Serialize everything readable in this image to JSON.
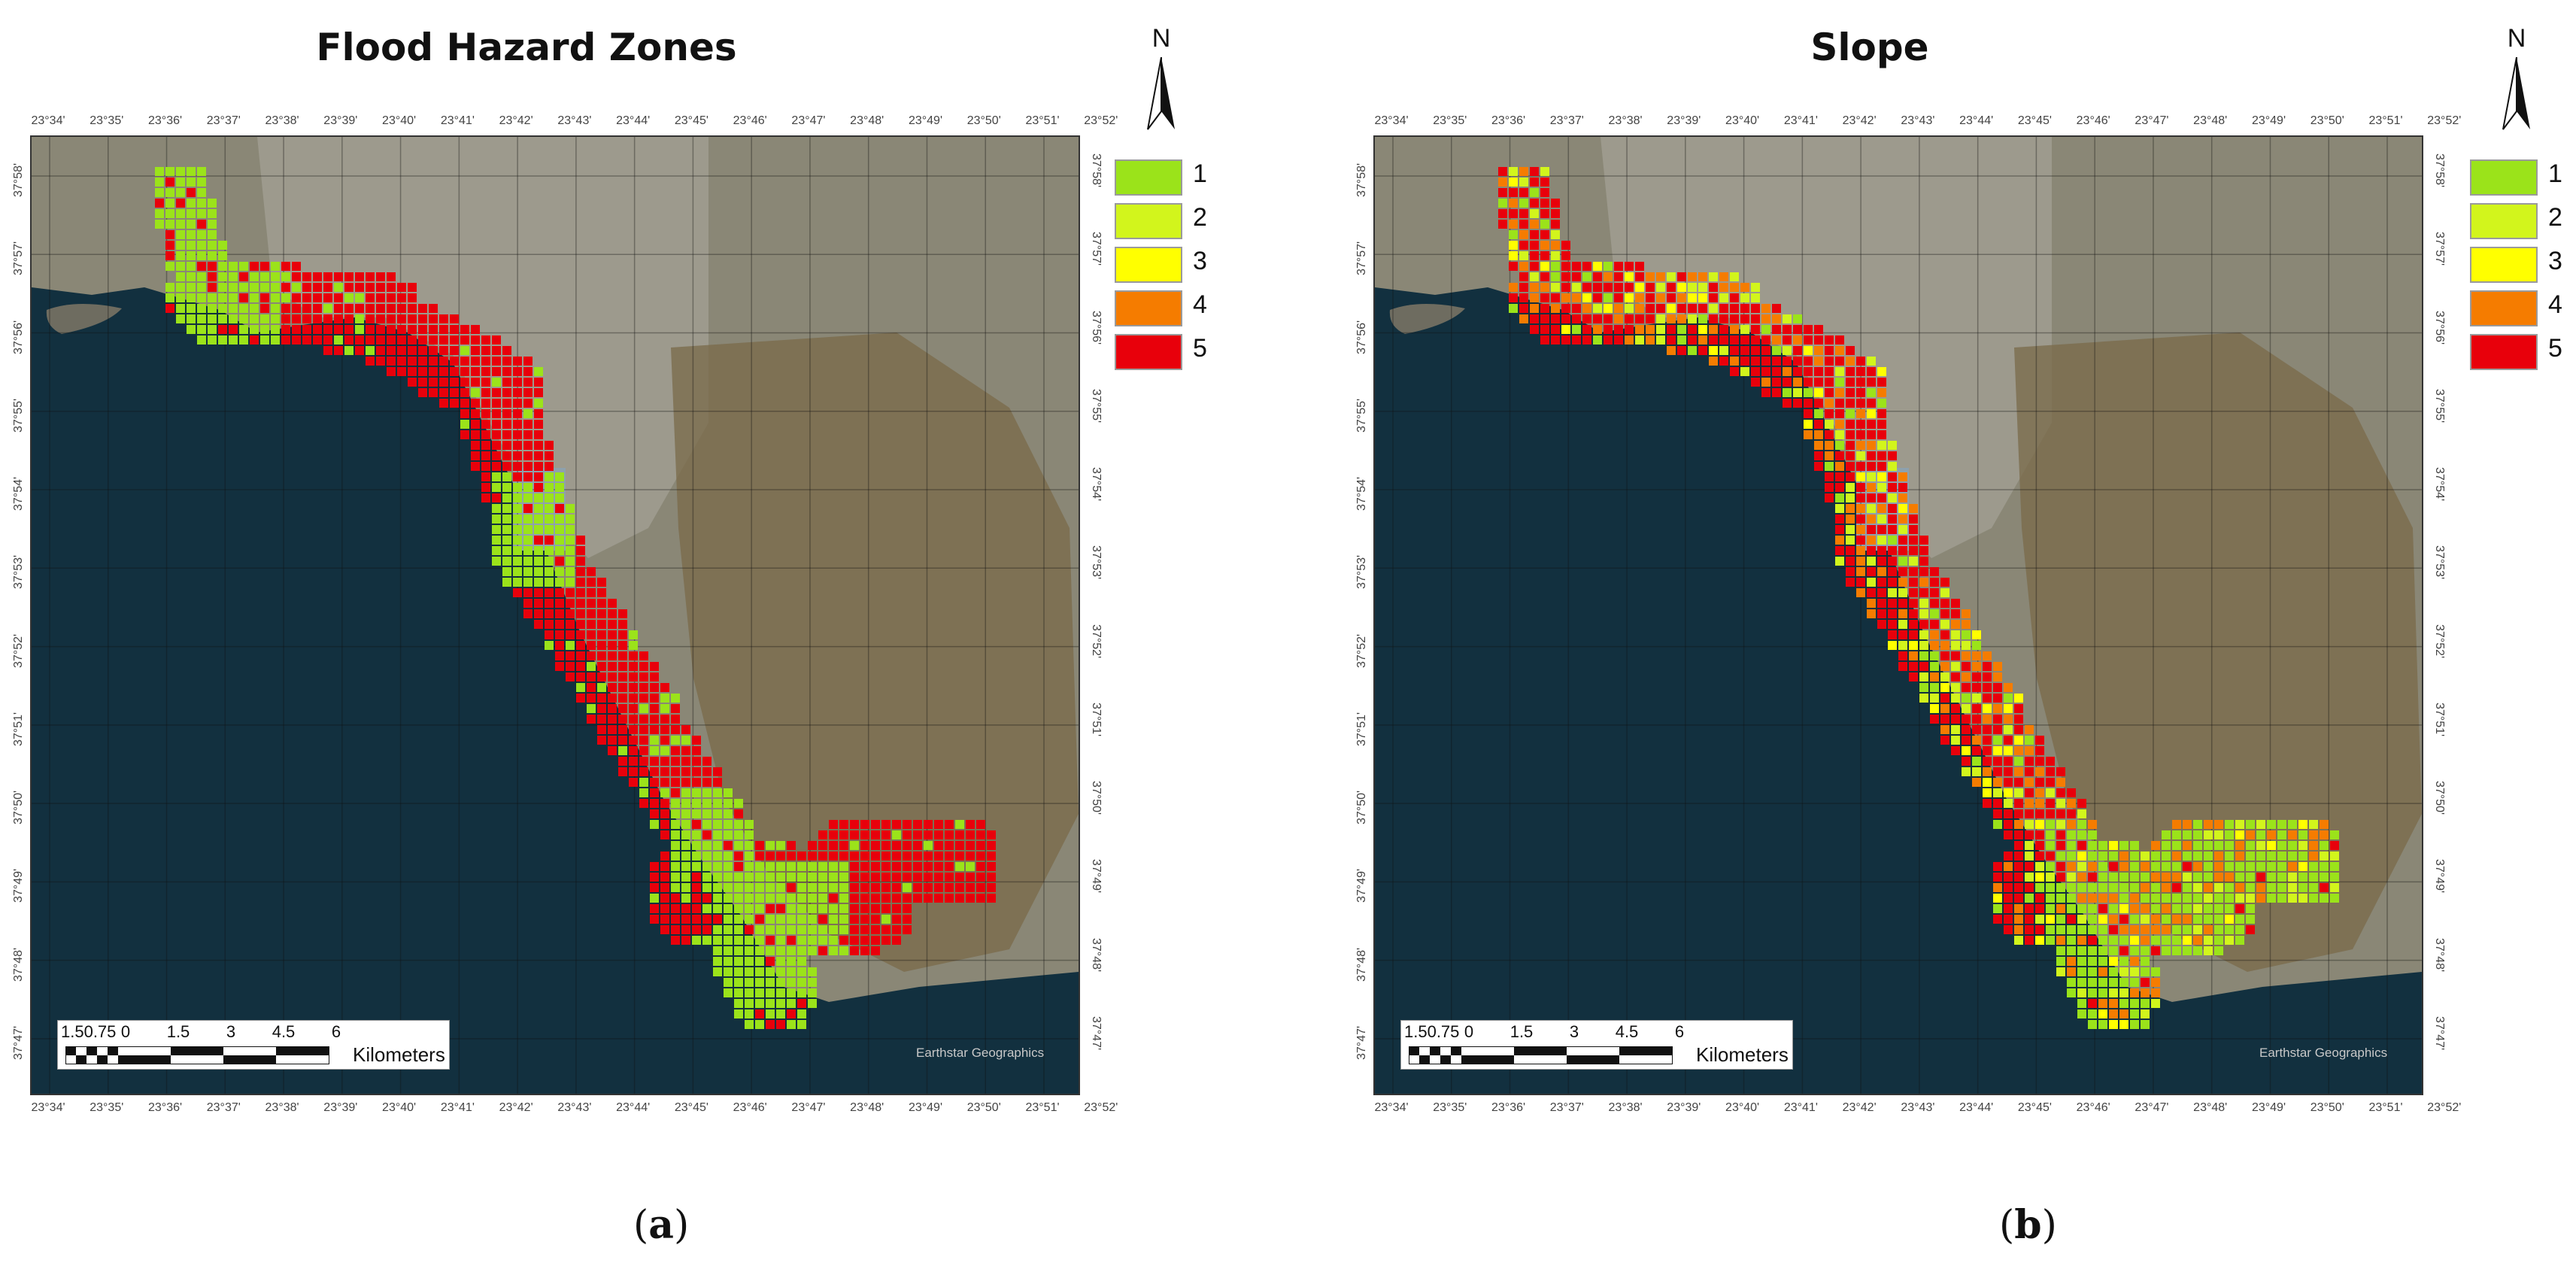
{
  "panels": [
    {
      "title": "Flood Hazard Zones",
      "caption_letter": "a",
      "palette": "hazard"
    },
    {
      "title": "Slope",
      "caption_letter": "b",
      "palette": "slope"
    }
  ],
  "north_label": "N",
  "legend": [
    {
      "label": "1",
      "color": "#9BE31A"
    },
    {
      "label": "2",
      "color": "#D2F51C"
    },
    {
      "label": "3",
      "color": "#FFFF00"
    },
    {
      "label": "4",
      "color": "#F57C00"
    },
    {
      "label": "5",
      "color": "#E8000B"
    }
  ],
  "longitude_ticks": [
    "23°34'",
    "23°35'",
    "23°36'",
    "23°37'",
    "23°38'",
    "23°39'",
    "23°40'",
    "23°41'",
    "23°42'",
    "23°43'",
    "23°44'",
    "23°45'",
    "23°46'",
    "23°47'",
    "23°48'",
    "23°49'",
    "23°50'",
    "23°51'",
    "23°52'"
  ],
  "latitude_ticks": [
    "37°58'",
    "37°57'",
    "37°56'",
    "37°55'",
    "37°54'",
    "37°53'",
    "37°52'",
    "37°51'",
    "37°50'",
    "37°49'",
    "37°48'",
    "37°47'"
  ],
  "scale_bar": {
    "numbers": [
      "1.50.75",
      "0",
      "1.5",
      "3",
      "4.5",
      "6"
    ],
    "unit": "Kilometers"
  },
  "basemap_credit": "Earthstar Geographics"
}
